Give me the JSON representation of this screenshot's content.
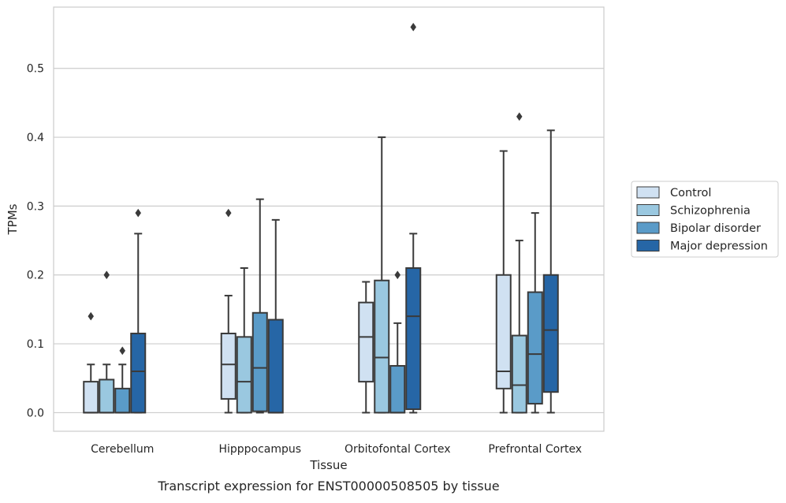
{
  "chart_data": {
    "type": "box",
    "title": "",
    "caption": "Transcript expression for ENST00000508505 by tissue",
    "xlabel": "Tissue",
    "ylabel": "TPMs",
    "ylim": [
      -0.027,
      0.589
    ],
    "yticks": [
      0.0,
      0.1,
      0.2,
      0.3,
      0.4,
      0.5
    ],
    "ytick_labels": [
      "0.0",
      "0.1",
      "0.2",
      "0.3",
      "0.4",
      "0.5"
    ],
    "grid": "horizontal",
    "legend_position": "right-outside",
    "categories": [
      "Cerebellum",
      "Hipppocampus",
      "Orbitofontal Cortex",
      "Prefrontal Cortex"
    ],
    "series": [
      {
        "name": "Control",
        "color": "#d0e1f2",
        "boxes": [
          {
            "q1": 0.0,
            "median": 0.0,
            "q3": 0.045,
            "whisker_low": 0.0,
            "whisker_high": 0.07,
            "outliers": [
              0.14
            ]
          },
          {
            "q1": 0.02,
            "median": 0.07,
            "q3": 0.115,
            "whisker_low": 0.0,
            "whisker_high": 0.17,
            "outliers": [
              0.29
            ]
          },
          {
            "q1": 0.045,
            "median": 0.11,
            "q3": 0.16,
            "whisker_low": 0.0,
            "whisker_high": 0.19,
            "outliers": []
          },
          {
            "q1": 0.035,
            "median": 0.06,
            "q3": 0.2,
            "whisker_low": 0.0,
            "whisker_high": 0.38,
            "outliers": []
          }
        ]
      },
      {
        "name": "Schizophrenia",
        "color": "#9ac8e0",
        "boxes": [
          {
            "q1": 0.0,
            "median": 0.0,
            "q3": 0.048,
            "whisker_low": 0.0,
            "whisker_high": 0.07,
            "outliers": [
              0.2
            ]
          },
          {
            "q1": 0.0,
            "median": 0.045,
            "q3": 0.11,
            "whisker_low": 0.0,
            "whisker_high": 0.21,
            "outliers": []
          },
          {
            "q1": 0.0,
            "median": 0.08,
            "q3": 0.192,
            "whisker_low": 0.0,
            "whisker_high": 0.4,
            "outliers": []
          },
          {
            "q1": 0.0,
            "median": 0.04,
            "q3": 0.112,
            "whisker_low": 0.0,
            "whisker_high": 0.25,
            "outliers": [
              0.43
            ]
          }
        ]
      },
      {
        "name": "Bipolar disorder",
        "color": "#5a9bc8",
        "boxes": [
          {
            "q1": 0.0,
            "median": 0.0,
            "q3": 0.035,
            "whisker_low": 0.0,
            "whisker_high": 0.07,
            "outliers": [
              0.09
            ]
          },
          {
            "q1": 0.002,
            "median": 0.065,
            "q3": 0.145,
            "whisker_low": 0.0,
            "whisker_high": 0.31,
            "outliers": []
          },
          {
            "q1": 0.0,
            "median": 0.0,
            "q3": 0.068,
            "whisker_low": 0.0,
            "whisker_high": 0.13,
            "outliers": [
              0.2
            ]
          },
          {
            "q1": 0.013,
            "median": 0.085,
            "q3": 0.175,
            "whisker_low": 0.0,
            "whisker_high": 0.29,
            "outliers": []
          }
        ]
      },
      {
        "name": "Major depression",
        "color": "#2666a6",
        "boxes": [
          {
            "q1": 0.0,
            "median": 0.06,
            "q3": 0.115,
            "whisker_low": 0.0,
            "whisker_high": 0.26,
            "outliers": [
              0.29
            ]
          },
          {
            "q1": 0.0,
            "median": 0.0,
            "q3": 0.135,
            "whisker_low": 0.0,
            "whisker_high": 0.28,
            "outliers": []
          },
          {
            "q1": 0.005,
            "median": 0.14,
            "q3": 0.21,
            "whisker_low": 0.0,
            "whisker_high": 0.26,
            "outliers": [
              0.56
            ]
          },
          {
            "q1": 0.03,
            "median": 0.12,
            "q3": 0.2,
            "whisker_low": 0.0,
            "whisker_high": 0.41,
            "outliers": []
          }
        ]
      }
    ],
    "colors": {
      "box_edge": "#3a3a3a",
      "grid": "#cccccc",
      "spine": "#cccccc",
      "text": "#262626"
    }
  }
}
